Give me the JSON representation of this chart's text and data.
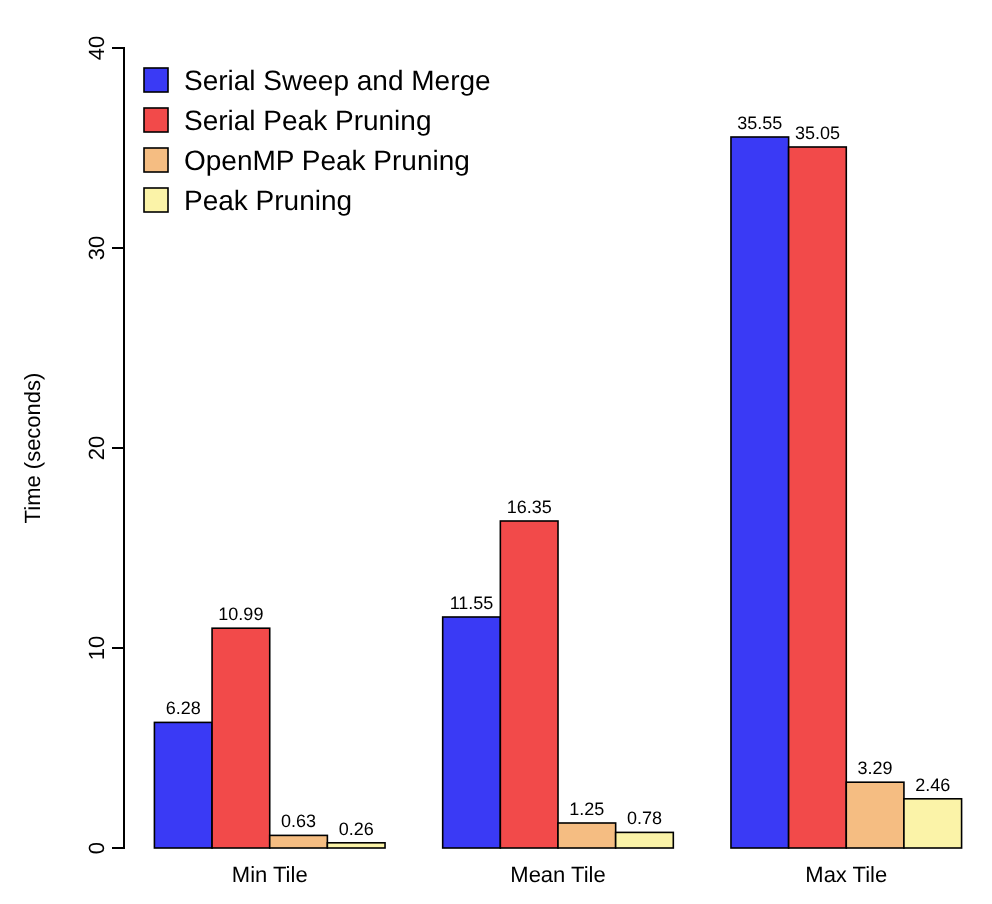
{
  "chart_data": {
    "type": "bar",
    "ylabel": "Time (seconds)",
    "categories": [
      "Min Tile",
      "Mean Tile",
      "Max Tile"
    ],
    "series": [
      {
        "name": "Serial Sweep and Merge",
        "color": "#3a3af5",
        "values": [
          6.28,
          11.55,
          35.55
        ]
      },
      {
        "name": "Serial Peak Pruning",
        "color": "#f24a4a",
        "values": [
          10.99,
          16.35,
          35.05
        ]
      },
      {
        "name": "OpenMP Peak Pruning",
        "color": "#f5bd82",
        "values": [
          0.63,
          1.25,
          3.29
        ]
      },
      {
        "name": "Peak Pruning",
        "color": "#fbf3a8",
        "values": [
          0.26,
          0.78,
          2.46
        ]
      }
    ],
    "ylim": [
      0,
      40
    ],
    "yticks": [
      0,
      10,
      20,
      30,
      40
    ],
    "data_labels": true,
    "legend": "top left",
    "grid": false
  }
}
